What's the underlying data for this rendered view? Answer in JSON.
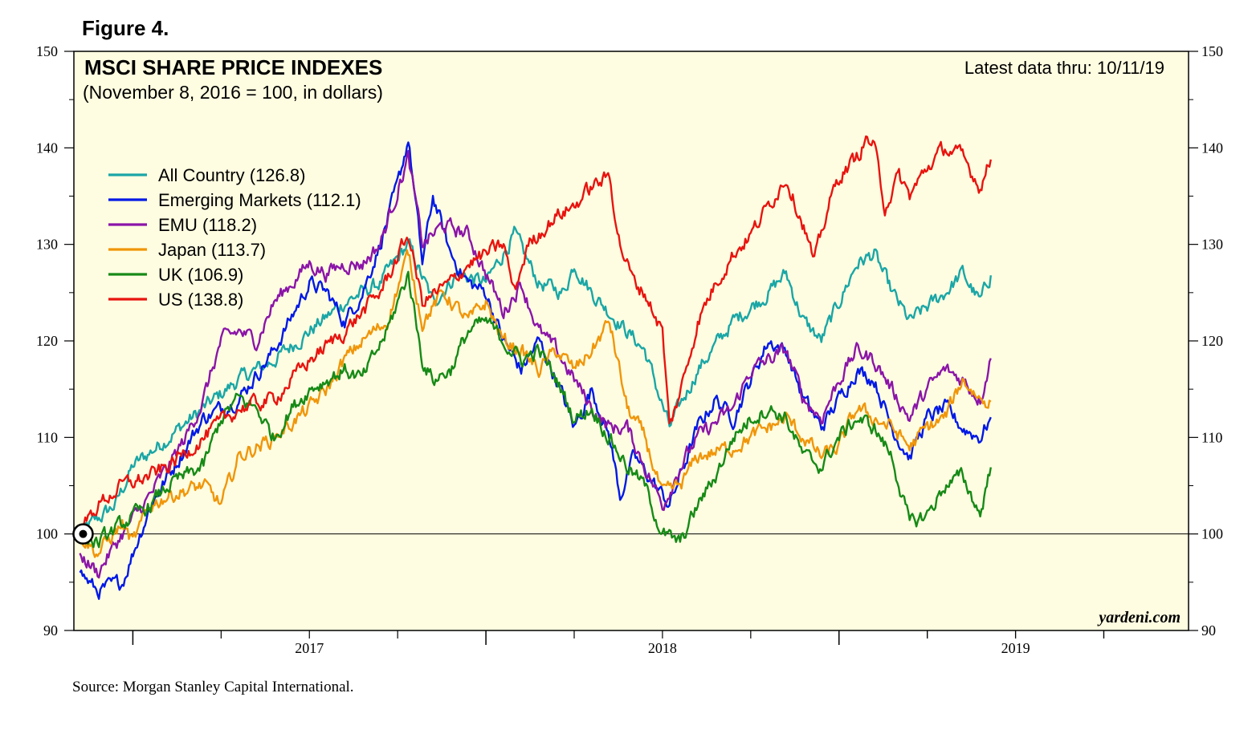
{
  "figure_label": "Figure 4.",
  "source": "Source: Morgan Stanley Capital International.",
  "chart_data": {
    "type": "line",
    "title": "MSCI SHARE PRICE INDEXES",
    "subtitle": "(November 8, 2016 = 100, in dollars)",
    "latest": "Latest data thru: 10/11/19",
    "brand": "yardeni.com",
    "xlabel": "",
    "ylabel": "",
    "ylim": [
      90,
      150
    ],
    "xlim": [
      2016.833,
      2019.99
    ],
    "y_ticks": [
      90,
      100,
      110,
      120,
      130,
      140,
      150
    ],
    "year_labels": [
      "2017",
      "2018",
      "2019"
    ],
    "reference_line": 100,
    "series": [
      {
        "name": "All Country",
        "label": "All Country (126.8)",
        "color": "#1aa6a6",
        "points": [
          [
            2016.85,
            100
          ],
          [
            2016.95,
            103
          ],
          [
            2017.0,
            107
          ],
          [
            2017.1,
            110
          ],
          [
            2017.2,
            113
          ],
          [
            2017.3,
            116
          ],
          [
            2017.4,
            118
          ],
          [
            2017.5,
            121
          ],
          [
            2017.6,
            124
          ],
          [
            2017.7,
            126
          ],
          [
            2017.78,
            130
          ],
          [
            2017.85,
            124
          ],
          [
            2017.92,
            127
          ],
          [
            2018.0,
            126
          ],
          [
            2018.08,
            131
          ],
          [
            2018.15,
            126
          ],
          [
            2018.22,
            125
          ],
          [
            2018.25,
            128
          ],
          [
            2018.3,
            125
          ],
          [
            2018.35,
            123
          ],
          [
            2018.45,
            119
          ],
          [
            2018.52,
            111
          ],
          [
            2018.6,
            117
          ],
          [
            2018.7,
            122
          ],
          [
            2018.8,
            125
          ],
          [
            2018.85,
            127
          ],
          [
            2018.9,
            122
          ],
          [
            2018.95,
            120
          ],
          [
            2019.0,
            124
          ],
          [
            2019.05,
            128
          ],
          [
            2019.1,
            129
          ],
          [
            2019.15,
            125
          ],
          [
            2019.2,
            122
          ],
          [
            2019.3,
            125
          ],
          [
            2019.35,
            127
          ],
          [
            2019.4,
            124
          ],
          [
            2019.43,
            126.8
          ]
        ]
      },
      {
        "name": "Emerging Markets",
        "label": "Emerging Markets (112.1)",
        "color": "#0019e6",
        "points": [
          [
            2016.85,
            96
          ],
          [
            2016.9,
            94
          ],
          [
            2016.97,
            95
          ],
          [
            2017.05,
            103
          ],
          [
            2017.1,
            106
          ],
          [
            2017.2,
            112
          ],
          [
            2017.3,
            114
          ],
          [
            2017.4,
            119
          ],
          [
            2017.5,
            126
          ],
          [
            2017.55,
            125
          ],
          [
            2017.6,
            122
          ],
          [
            2017.65,
            125
          ],
          [
            2017.7,
            130
          ],
          [
            2017.75,
            136
          ],
          [
            2017.78,
            141
          ],
          [
            2017.82,
            128
          ],
          [
            2017.85,
            135
          ],
          [
            2017.9,
            129
          ],
          [
            2017.95,
            126
          ],
          [
            2018.0,
            125
          ],
          [
            2018.05,
            120
          ],
          [
            2018.1,
            117
          ],
          [
            2018.15,
            120
          ],
          [
            2018.2,
            116
          ],
          [
            2018.25,
            111
          ],
          [
            2018.3,
            115
          ],
          [
            2018.35,
            110
          ],
          [
            2018.38,
            104
          ],
          [
            2018.42,
            108
          ],
          [
            2018.48,
            105
          ],
          [
            2018.52,
            103
          ],
          [
            2018.6,
            111
          ],
          [
            2018.65,
            114
          ],
          [
            2018.7,
            112
          ],
          [
            2018.75,
            116
          ],
          [
            2018.8,
            120
          ],
          [
            2018.85,
            119
          ],
          [
            2018.9,
            114
          ],
          [
            2018.95,
            111
          ],
          [
            2019.0,
            114
          ],
          [
            2019.05,
            117
          ],
          [
            2019.1,
            116
          ],
          [
            2019.15,
            111
          ],
          [
            2019.2,
            108
          ],
          [
            2019.25,
            112
          ],
          [
            2019.3,
            113
          ],
          [
            2019.35,
            111
          ],
          [
            2019.4,
            110
          ],
          [
            2019.43,
            112.1
          ]
        ]
      },
      {
        "name": "EMU",
        "label": "EMU (118.2)",
        "color": "#8b15a8",
        "points": [
          [
            2016.85,
            98
          ],
          [
            2016.9,
            96
          ],
          [
            2016.97,
            100
          ],
          [
            2017.05,
            104
          ],
          [
            2017.1,
            107
          ],
          [
            2017.15,
            110
          ],
          [
            2017.2,
            114
          ],
          [
            2017.25,
            120
          ],
          [
            2017.3,
            121
          ],
          [
            2017.35,
            120
          ],
          [
            2017.4,
            124
          ],
          [
            2017.5,
            128
          ],
          [
            2017.55,
            127
          ],
          [
            2017.6,
            128
          ],
          [
            2017.65,
            128
          ],
          [
            2017.7,
            130
          ],
          [
            2017.78,
            139
          ],
          [
            2017.82,
            130
          ],
          [
            2017.88,
            132
          ],
          [
            2017.95,
            131
          ],
          [
            2018.0,
            127
          ],
          [
            2018.05,
            123
          ],
          [
            2018.1,
            126
          ],
          [
            2018.15,
            121
          ],
          [
            2018.2,
            119
          ],
          [
            2018.25,
            116
          ],
          [
            2018.3,
            113
          ],
          [
            2018.35,
            111
          ],
          [
            2018.4,
            111
          ],
          [
            2018.45,
            107
          ],
          [
            2018.5,
            103
          ],
          [
            2018.55,
            107
          ],
          [
            2018.6,
            110
          ],
          [
            2018.7,
            113
          ],
          [
            2018.75,
            117
          ],
          [
            2018.8,
            118
          ],
          [
            2018.85,
            119
          ],
          [
            2018.9,
            114
          ],
          [
            2018.95,
            112
          ],
          [
            2019.0,
            116
          ],
          [
            2019.05,
            119
          ],
          [
            2019.1,
            118
          ],
          [
            2019.15,
            115
          ],
          [
            2019.2,
            112
          ],
          [
            2019.25,
            115
          ],
          [
            2019.3,
            117
          ],
          [
            2019.35,
            116
          ],
          [
            2019.4,
            114
          ],
          [
            2019.43,
            118.2
          ]
        ]
      },
      {
        "name": "Japan",
        "label": "Japan (113.7)",
        "color": "#f0960a",
        "points": [
          [
            2016.85,
            100
          ],
          [
            2016.9,
            98
          ],
          [
            2016.97,
            101
          ],
          [
            2017.0,
            99
          ],
          [
            2017.05,
            103
          ],
          [
            2017.1,
            104
          ],
          [
            2017.2,
            105
          ],
          [
            2017.25,
            103
          ],
          [
            2017.3,
            108
          ],
          [
            2017.4,
            110
          ],
          [
            2017.5,
            113
          ],
          [
            2017.55,
            115
          ],
          [
            2017.6,
            118
          ],
          [
            2017.65,
            120
          ],
          [
            2017.72,
            122
          ],
          [
            2017.78,
            129
          ],
          [
            2017.82,
            122
          ],
          [
            2017.88,
            125
          ],
          [
            2017.95,
            122
          ],
          [
            2018.0,
            124
          ],
          [
            2018.05,
            120
          ],
          [
            2018.1,
            119
          ],
          [
            2018.15,
            117
          ],
          [
            2018.2,
            119
          ],
          [
            2018.25,
            117
          ],
          [
            2018.3,
            119
          ],
          [
            2018.35,
            122
          ],
          [
            2018.4,
            113
          ],
          [
            2018.45,
            110
          ],
          [
            2018.5,
            104
          ],
          [
            2018.55,
            105
          ],
          [
            2018.6,
            108
          ],
          [
            2018.7,
            109
          ],
          [
            2018.8,
            111
          ],
          [
            2018.85,
            112
          ],
          [
            2018.9,
            110
          ],
          [
            2018.95,
            108
          ],
          [
            2019.0,
            109
          ],
          [
            2019.05,
            113
          ],
          [
            2019.1,
            112
          ],
          [
            2019.15,
            111
          ],
          [
            2019.2,
            109
          ],
          [
            2019.25,
            111
          ],
          [
            2019.3,
            112
          ],
          [
            2019.35,
            116
          ],
          [
            2019.4,
            114
          ],
          [
            2019.43,
            113.7
          ]
        ]
      },
      {
        "name": "UK",
        "label": "UK (106.9)",
        "color": "#168a16",
        "points": [
          [
            2016.85,
            100
          ],
          [
            2016.9,
            99
          ],
          [
            2016.97,
            101
          ],
          [
            2017.05,
            103
          ],
          [
            2017.1,
            105
          ],
          [
            2017.2,
            107
          ],
          [
            2017.25,
            112
          ],
          [
            2017.3,
            114
          ],
          [
            2017.35,
            113
          ],
          [
            2017.4,
            110
          ],
          [
            2017.45,
            113
          ],
          [
            2017.5,
            115
          ],
          [
            2017.55,
            116
          ],
          [
            2017.6,
            117
          ],
          [
            2017.65,
            116
          ],
          [
            2017.72,
            121
          ],
          [
            2017.78,
            127
          ],
          [
            2017.82,
            118
          ],
          [
            2017.85,
            116
          ],
          [
            2017.9,
            117
          ],
          [
            2017.95,
            121
          ],
          [
            2018.0,
            122
          ],
          [
            2018.05,
            120
          ],
          [
            2018.1,
            118
          ],
          [
            2018.15,
            119
          ],
          [
            2018.2,
            116
          ],
          [
            2018.25,
            112
          ],
          [
            2018.3,
            113
          ],
          [
            2018.35,
            110
          ],
          [
            2018.4,
            107
          ],
          [
            2018.45,
            105
          ],
          [
            2018.5,
            100
          ],
          [
            2018.55,
            99
          ],
          [
            2018.6,
            103
          ],
          [
            2018.65,
            106
          ],
          [
            2018.7,
            110
          ],
          [
            2018.75,
            112
          ],
          [
            2018.8,
            113
          ],
          [
            2018.85,
            112
          ],
          [
            2018.9,
            108
          ],
          [
            2018.95,
            107
          ],
          [
            2019.0,
            110
          ],
          [
            2019.05,
            112
          ],
          [
            2019.1,
            111
          ],
          [
            2019.15,
            108
          ],
          [
            2019.2,
            101
          ],
          [
            2019.25,
            102
          ],
          [
            2019.3,
            105
          ],
          [
            2019.35,
            106
          ],
          [
            2019.4,
            102
          ],
          [
            2019.43,
            106.9
          ]
        ]
      },
      {
        "name": "US",
        "label": "US (138.8)",
        "color": "#e8140f",
        "points": [
          [
            2016.85,
            100
          ],
          [
            2016.9,
            103
          ],
          [
            2016.97,
            105
          ],
          [
            2017.05,
            106
          ],
          [
            2017.1,
            107
          ],
          [
            2017.2,
            110
          ],
          [
            2017.3,
            113
          ],
          [
            2017.4,
            114
          ],
          [
            2017.5,
            118
          ],
          [
            2017.6,
            121
          ],
          [
            2017.65,
            123
          ],
          [
            2017.7,
            125
          ],
          [
            2017.78,
            131
          ],
          [
            2017.82,
            124
          ],
          [
            2017.9,
            126
          ],
          [
            2017.95,
            128
          ],
          [
            2018.0,
            129
          ],
          [
            2018.05,
            130
          ],
          [
            2018.08,
            125
          ],
          [
            2018.12,
            130
          ],
          [
            2018.2,
            133
          ],
          [
            2018.25,
            134
          ],
          [
            2018.3,
            136
          ],
          [
            2018.35,
            137
          ],
          [
            2018.38,
            130
          ],
          [
            2018.42,
            126
          ],
          [
            2018.45,
            125
          ],
          [
            2018.5,
            121
          ],
          [
            2018.52,
            111
          ],
          [
            2018.56,
            116
          ],
          [
            2018.6,
            122
          ],
          [
            2018.65,
            126
          ],
          [
            2018.7,
            129
          ],
          [
            2018.75,
            131
          ],
          [
            2018.8,
            134
          ],
          [
            2018.85,
            137
          ],
          [
            2018.9,
            132
          ],
          [
            2018.93,
            128
          ],
          [
            2018.97,
            134
          ],
          [
            2019.0,
            137
          ],
          [
            2019.05,
            139
          ],
          [
            2019.08,
            141
          ],
          [
            2019.1,
            140
          ],
          [
            2019.13,
            134
          ],
          [
            2019.17,
            137
          ],
          [
            2019.2,
            135
          ],
          [
            2019.25,
            138
          ],
          [
            2019.3,
            140
          ],
          [
            2019.35,
            139
          ],
          [
            2019.4,
            136
          ],
          [
            2019.43,
            138.8
          ]
        ]
      }
    ]
  }
}
